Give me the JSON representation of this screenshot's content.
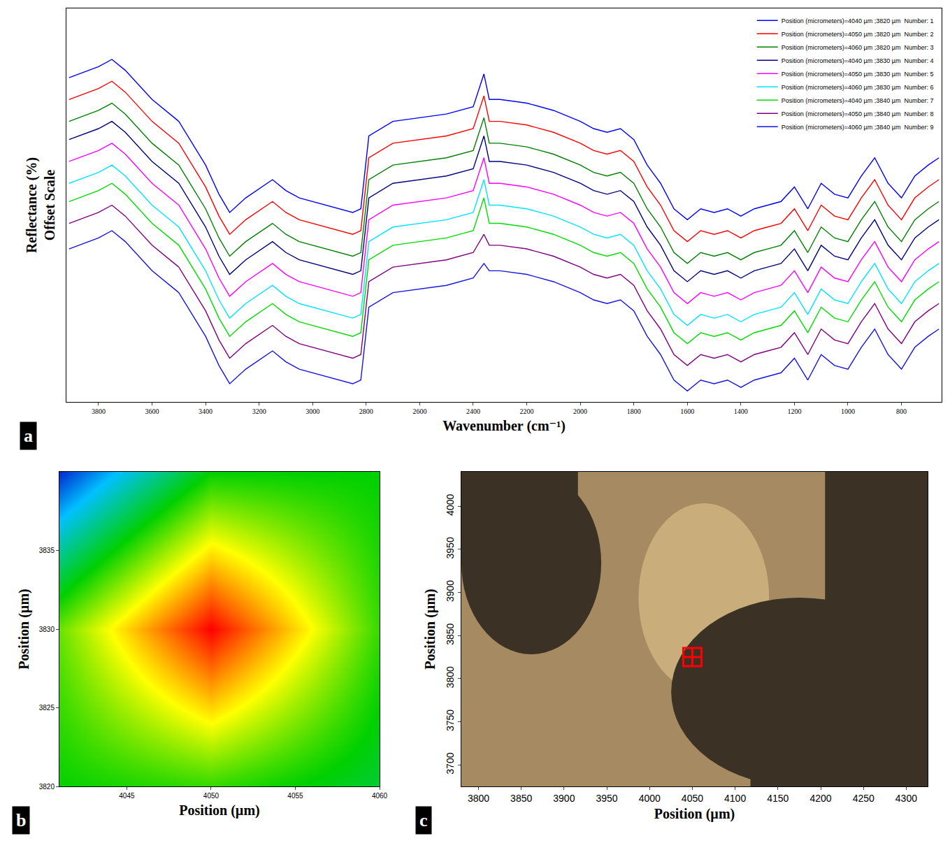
{
  "chart_data": [
    {
      "panel": "a",
      "type": "line",
      "xlabel": "Wavenumber (cm⁻¹)",
      "ylabel": [
        "Reflectance (%)",
        "Offset Scale"
      ],
      "x": [
        3910,
        3800,
        3750,
        3700,
        3600,
        3500,
        3400,
        3350,
        3310,
        3250,
        3150,
        3100,
        3050,
        3000,
        2950,
        2900,
        2850,
        2820,
        2790,
        2700,
        2600,
        2500,
        2400,
        2360,
        2340,
        2300,
        2200,
        2100,
        2000,
        1950,
        1900,
        1850,
        1800,
        1750,
        1700,
        1650,
        1600,
        1550,
        1500,
        1450,
        1400,
        1350,
        1300,
        1250,
        1200,
        1150,
        1100,
        1050,
        1000,
        950,
        900,
        850,
        800,
        750,
        700,
        660
      ],
      "xlim": [
        3920,
        650
      ],
      "xticks": [
        3800,
        3600,
        3400,
        3200,
        3000,
        2800,
        2600,
        2400,
        2200,
        2000,
        1800,
        1600,
        1400,
        1200,
        1000,
        800
      ],
      "ylim": [
        0,
        108
      ],
      "tick_labels": "x",
      "legend": "top right",
      "series": [
        {
          "name": "Position (micrometers)=4040 µm ;3820 µm  Number: 1",
          "color": "#0000ff",
          "values": [
            89,
            92,
            94,
            91,
            83,
            77,
            65,
            57,
            52,
            56,
            61,
            58,
            56,
            55,
            54,
            53,
            52,
            53,
            73,
            77,
            78,
            79,
            81,
            90,
            83,
            83,
            82,
            80,
            77,
            75,
            74,
            75,
            72,
            65,
            60,
            53,
            50,
            53,
            52,
            53,
            51,
            53,
            54,
            55,
            59,
            53,
            60,
            57,
            56,
            62,
            67,
            60,
            56,
            62,
            65,
            67
          ]
        },
        {
          "name": "Position (micrometers)=4050 µm ;3820 µm  Number: 2",
          "color": "#ff0000",
          "values": [
            83,
            86,
            88,
            85,
            77,
            71,
            59,
            51,
            46,
            50,
            55,
            52,
            50,
            49,
            48,
            47,
            46,
            47,
            67,
            71,
            72,
            73,
            75,
            84,
            77,
            77,
            76,
            74,
            71,
            69,
            68,
            69,
            66,
            59,
            54,
            47,
            44,
            47,
            46,
            47,
            45,
            47,
            48,
            49,
            53,
            47,
            54,
            51,
            50,
            56,
            61,
            54,
            50,
            56,
            59,
            61
          ]
        },
        {
          "name": "Position (micrometers)=4060 µm ;3820 µm  Number: 3",
          "color": "#008000",
          "values": [
            77,
            80,
            82,
            79,
            71,
            65,
            53,
            45,
            40,
            44,
            49,
            46,
            44,
            43,
            42,
            41,
            40,
            41,
            61,
            65,
            66,
            67,
            69,
            78,
            71,
            71,
            70,
            68,
            65,
            63,
            62,
            63,
            60,
            53,
            48,
            41,
            38,
            41,
            40,
            41,
            39,
            41,
            42,
            43,
            47,
            41,
            48,
            45,
            44,
            50,
            55,
            48,
            44,
            50,
            53,
            55
          ]
        },
        {
          "name": "Position (micrometers)=4040 µm ;3830 µm  Number: 4",
          "color": "#000080",
          "values": [
            72,
            75,
            77,
            74,
            66,
            60,
            48,
            40,
            35,
            39,
            44,
            41,
            39,
            38,
            37,
            36,
            35,
            36,
            56,
            60,
            61,
            62,
            64,
            73,
            66,
            66,
            65,
            63,
            60,
            58,
            57,
            58,
            55,
            48,
            43,
            36,
            33,
            36,
            35,
            36,
            34,
            36,
            37,
            38,
            42,
            36,
            43,
            40,
            39,
            45,
            50,
            43,
            39,
            45,
            48,
            50
          ]
        },
        {
          "name": "Position (micrometers)=4050 µm ;3830 µm  Number: 5",
          "color": "#ff00ff",
          "values": [
            66,
            69,
            71,
            68,
            60,
            54,
            42,
            34,
            29,
            33,
            38,
            35,
            33,
            32,
            31,
            30,
            29,
            30,
            50,
            54,
            55,
            56,
            58,
            67,
            60,
            60,
            59,
            57,
            54,
            52,
            51,
            52,
            49,
            42,
            37,
            30,
            27,
            30,
            29,
            30,
            28,
            30,
            31,
            32,
            36,
            30,
            37,
            34,
            33,
            39,
            44,
            37,
            33,
            39,
            42,
            44
          ]
        },
        {
          "name": "Position (micrometers)=4060 µm ;3830 µm  Number: 6",
          "color": "#00e5ff",
          "values": [
            60,
            63,
            65,
            62,
            54,
            48,
            36,
            28,
            23,
            27,
            32,
            29,
            27,
            26,
            25,
            24,
            23,
            24,
            44,
            48,
            49,
            50,
            52,
            61,
            54,
            54,
            53,
            51,
            48,
            46,
            45,
            46,
            43,
            36,
            31,
            24,
            21,
            24,
            23,
            24,
            22,
            24,
            25,
            26,
            30,
            24,
            31,
            28,
            27,
            33,
            38,
            31,
            27,
            33,
            36,
            38
          ]
        },
        {
          "name": "Position (micrometers)=4040 µm ;3840 µm  Number: 7",
          "color": "#00dd00",
          "values": [
            55,
            58,
            60,
            57,
            49,
            43,
            31,
            23,
            18,
            22,
            27,
            24,
            22,
            21,
            20,
            19,
            18,
            19,
            39,
            43,
            44,
            45,
            47,
            56,
            49,
            49,
            48,
            46,
            43,
            41,
            40,
            41,
            38,
            31,
            26,
            19,
            16,
            19,
            18,
            19,
            17,
            19,
            20,
            21,
            25,
            19,
            26,
            23,
            22,
            28,
            33,
            26,
            22,
            28,
            31,
            33
          ]
        },
        {
          "name": "Position (micrometers)=4050 µm ;3840 µm  Number: 8",
          "color": "#800080",
          "values": [
            49,
            52,
            54,
            51,
            43,
            37,
            25,
            17,
            12,
            16,
            21,
            18,
            16,
            15,
            14,
            13,
            12,
            13,
            33,
            37,
            38,
            39,
            41,
            46,
            43,
            43,
            42,
            40,
            37,
            35,
            34,
            35,
            32,
            25,
            20,
            13,
            10,
            13,
            12,
            13,
            11,
            13,
            14,
            15,
            19,
            13,
            20,
            17,
            16,
            22,
            27,
            20,
            16,
            22,
            25,
            27
          ]
        },
        {
          "name": "Position (micrometers)=4060 µm ;3840 µm  Number: 9",
          "color": "#1414e6",
          "values": [
            42,
            45,
            47,
            44,
            36,
            30,
            18,
            10,
            5,
            9,
            14,
            11,
            9,
            8,
            7,
            6,
            5,
            6,
            26,
            30,
            31,
            32,
            34,
            38,
            36,
            36,
            35,
            33,
            30,
            28,
            27,
            28,
            25,
            18,
            13,
            6,
            3,
            6,
            5,
            6,
            4,
            6,
            7,
            8,
            12,
            6,
            13,
            10,
            9,
            15,
            20,
            13,
            9,
            15,
            18,
            20
          ]
        }
      ]
    },
    {
      "panel": "b",
      "type": "heatmap",
      "xlabel": "Position (µm)",
      "ylabel": "Position (µm)",
      "x": [
        4040,
        4050,
        4060
      ],
      "y": [
        3820,
        3830,
        3840
      ],
      "z": [
        [
          0.45,
          0.5,
          0.4
        ],
        [
          0.5,
          1.0,
          0.5
        ],
        [
          0.0,
          0.45,
          0.45
        ]
      ],
      "zlim": [
        0,
        1
      ],
      "xlim": [
        4041,
        4060
      ],
      "xticks": [
        4045,
        4050,
        4055,
        4060
      ],
      "ylim": [
        3820,
        3840
      ],
      "yticks": [
        3820,
        3825,
        3830,
        3835
      ]
    },
    {
      "panel": "c",
      "type": "scatter",
      "xlabel": "Position (µm)",
      "ylabel": "Position (µm)",
      "x": [
        4050
      ],
      "y": [
        3825
      ],
      "color": "#ff0000",
      "marker": "square-cross-open",
      "xlim": [
        3780,
        4325
      ],
      "xticks": [
        3800,
        3850,
        3900,
        3950,
        4000,
        4050,
        4100,
        4150,
        4200,
        4250,
        4300
      ],
      "ylim": [
        3675,
        4040
      ],
      "yticks": [
        3700,
        3750,
        3800,
        3850,
        3900,
        3950,
        4000
      ]
    }
  ]
}
